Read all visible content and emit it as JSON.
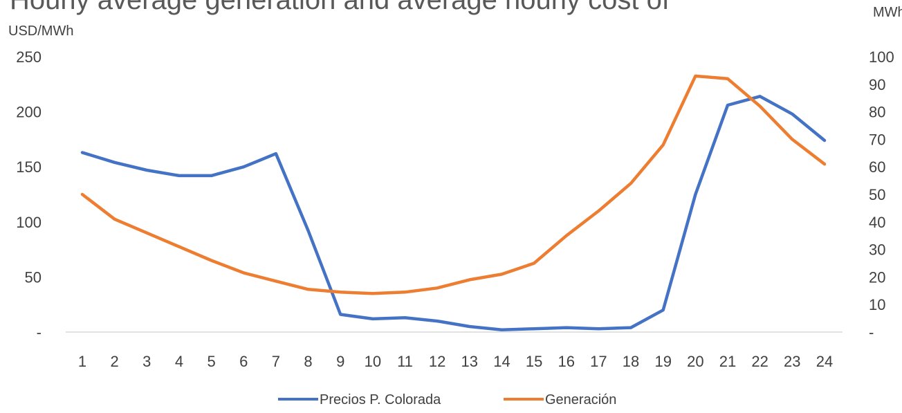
{
  "chart_data": {
    "type": "line",
    "title": "Hourly average generation and average hourly cost of",
    "y_left_label": "USD/MWh",
    "y_right_label": "MWh",
    "x": [
      1,
      2,
      3,
      4,
      5,
      6,
      7,
      8,
      9,
      10,
      11,
      12,
      13,
      14,
      15,
      16,
      17,
      18,
      19,
      20,
      21,
      22,
      23,
      24
    ],
    "y_left_ticks": [
      "-",
      "50",
      "100",
      "150",
      "200",
      "250"
    ],
    "y_left_tick_values": [
      0,
      50,
      100,
      150,
      200,
      250
    ],
    "y_right_ticks": [
      "-",
      "10",
      "20",
      "30",
      "40",
      "50",
      "60",
      "70",
      "80",
      "90",
      "100"
    ],
    "y_right_tick_values": [
      0,
      10,
      20,
      30,
      40,
      50,
      60,
      70,
      80,
      90,
      100
    ],
    "y_left_range": [
      0,
      250
    ],
    "y_right_range": [
      0,
      100
    ],
    "grid": false,
    "legend_position": "bottom",
    "series": [
      {
        "name": "Precios P. Colorada",
        "axis": "left",
        "color": "#4472C4",
        "values": [
          163,
          154,
          147,
          142,
          142,
          150,
          162,
          92,
          16,
          12,
          13,
          10,
          5,
          2,
          3,
          4,
          3,
          4,
          20,
          125,
          206,
          214,
          198,
          174
        ]
      },
      {
        "name": "Generación",
        "axis": "right",
        "color": "#ED7D31",
        "values": [
          50,
          41,
          36,
          31,
          26,
          21.5,
          18.5,
          15.5,
          14.5,
          14,
          14.5,
          16,
          19,
          21,
          25,
          35,
          44,
          54,
          68,
          93,
          92,
          82,
          70,
          61
        ]
      }
    ]
  }
}
